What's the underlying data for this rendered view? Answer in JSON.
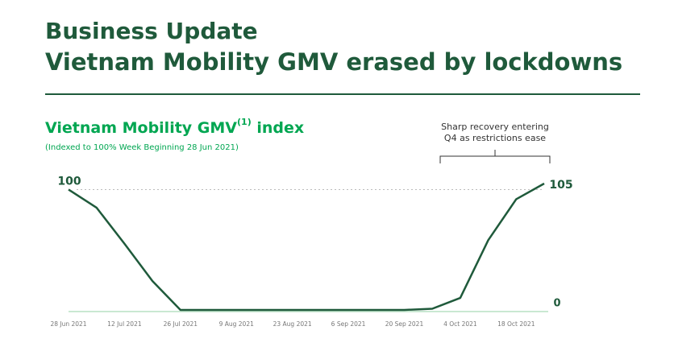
{
  "header": {
    "title": "Business Update",
    "subtitle": "Vietnam Mobility GMV erased by lockdowns"
  },
  "chart_data": {
    "type": "line",
    "title": "Vietnam Mobility GMV",
    "title_superscript": "(1)",
    "title_suffix": " index",
    "subtitle": "(Indexed to 100% Week Beginning 28 Jun 2021)",
    "annotation": [
      "Sharp recovery entering",
      "Q4 as restrictions ease"
    ],
    "categories": [
      "28 Jun 2021",
      null,
      "12 Jul 2021",
      null,
      "26 Jul 2021",
      null,
      "9 Aug 2021",
      null,
      "23 Aug 2021",
      null,
      "6 Sep 2021",
      null,
      "20 Sep 2021",
      null,
      "4 Oct 2021",
      null,
      "18 Oct 2021",
      null
    ],
    "series": [
      {
        "name": "Vietnam Mobility GMV index",
        "color": "#1f5a3b",
        "values": [
          100,
          85,
          55,
          24,
          0,
          0,
          0,
          0,
          0,
          0,
          0,
          0,
          0,
          1,
          10,
          58,
          92,
          105
        ]
      }
    ],
    "reference_line": 100,
    "ylim": [
      0,
      105
    ],
    "yticks": [
      0
    ]
  }
}
